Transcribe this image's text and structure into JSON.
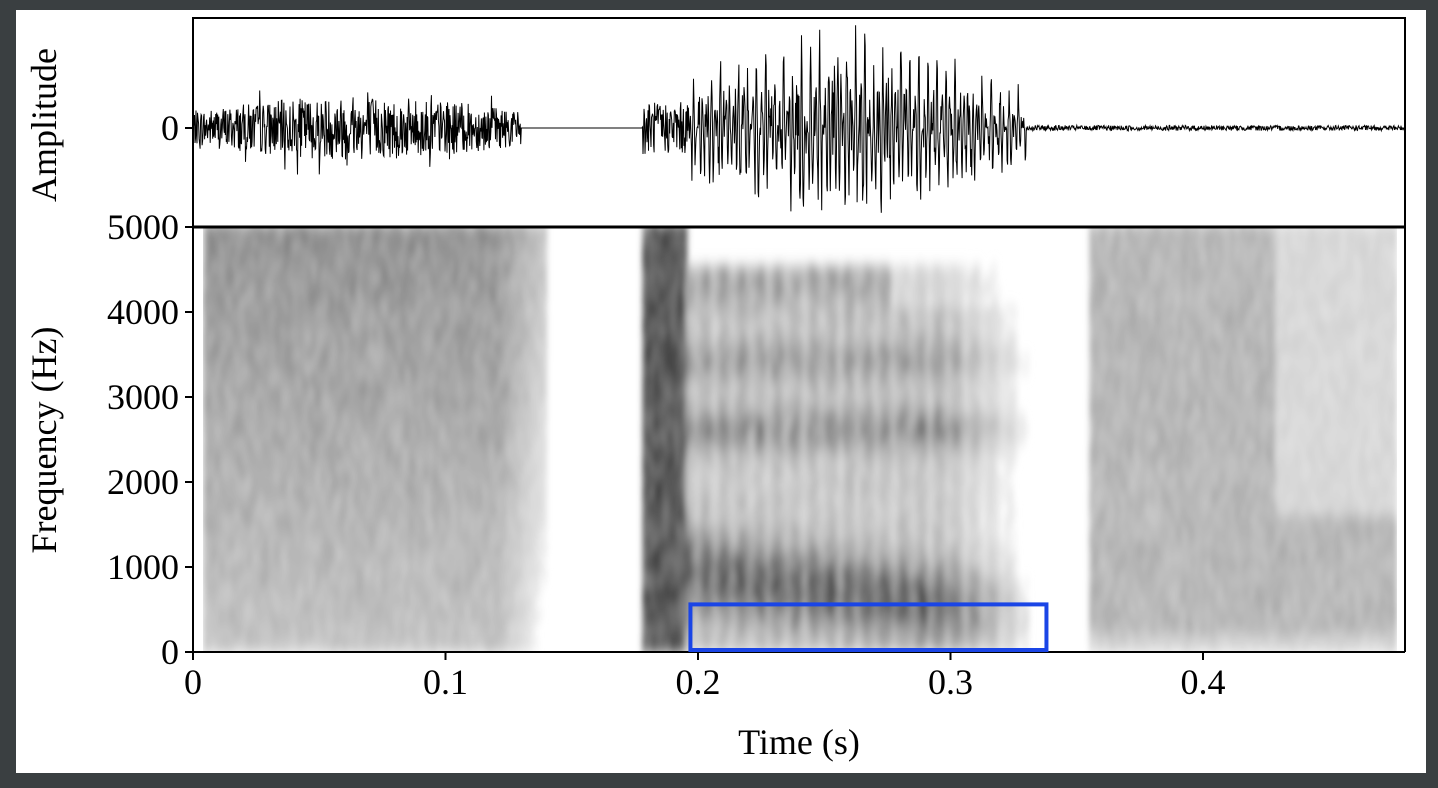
{
  "chart_data": [
    {
      "type": "line",
      "title": "",
      "xlabel": "",
      "ylabel": "Amplitude",
      "ylim": [
        -1,
        1
      ],
      "xlim": [
        0,
        0.48
      ],
      "y_ticks": [
        {
          "value": 0,
          "label": "0"
        }
      ],
      "grid": false,
      "segments": [
        {
          "x_start": 0.0,
          "x_end": 0.13,
          "kind": "frication",
          "peak_amplitude": 0.3
        },
        {
          "x_start": 0.13,
          "x_end": 0.178,
          "kind": "silence",
          "peak_amplitude": 0.0
        },
        {
          "x_start": 0.178,
          "x_end": 0.197,
          "kind": "burst",
          "peak_amplitude": 0.25
        },
        {
          "x_start": 0.197,
          "x_end": 0.33,
          "kind": "voiced",
          "peak_amplitude": 1.0
        },
        {
          "x_start": 0.33,
          "x_end": 0.48,
          "kind": "low-noise",
          "peak_amplitude": 0.05
        }
      ]
    },
    {
      "type": "heatmap",
      "title": "",
      "xlabel": "Time (s)",
      "ylabel": "Frequency (Hz)",
      "xlim": [
        0,
        0.48
      ],
      "ylim": [
        0,
        5000
      ],
      "x_ticks": [
        {
          "value": 0,
          "label": "0"
        },
        {
          "value": 0.1,
          "label": "0.1"
        },
        {
          "value": 0.2,
          "label": "0.2"
        },
        {
          "value": 0.3,
          "label": "0.3"
        },
        {
          "value": 0.4,
          "label": "0.4"
        }
      ],
      "y_ticks": [
        {
          "value": 0,
          "label": "0"
        },
        {
          "value": 1000,
          "label": "1000"
        },
        {
          "value": 2000,
          "label": "2000"
        },
        {
          "value": 3000,
          "label": "3000"
        },
        {
          "value": 4000,
          "label": "4000"
        },
        {
          "value": 5000,
          "label": "5000"
        }
      ],
      "grid": false,
      "colormap": "grayscale (darker = more energy)",
      "energy_regions": [
        {
          "t_start": 0.004,
          "t_end": 0.14,
          "f_low": 0,
          "f_high": 5000,
          "intensity": 0.45,
          "pattern": "broadband noise, darkest 3000-5000 Hz"
        },
        {
          "t_start": 0.178,
          "t_end": 0.195,
          "f_low": 0,
          "f_high": 5000,
          "intensity": 0.7,
          "pattern": "release burst"
        },
        {
          "t_start": 0.195,
          "t_end": 0.33,
          "f_low": 0,
          "f_high": 4500,
          "intensity": 0.75,
          "pattern": "voiced formant bands with vertical striations"
        },
        {
          "t_start": 0.355,
          "t_end": 0.475,
          "f_low": 0,
          "f_high": 5000,
          "intensity": 0.3,
          "pattern": "weak noise"
        }
      ],
      "highlight_box": {
        "t_start": 0.197,
        "t_end": 0.338,
        "f_low": 0,
        "f_high": 560,
        "color": "#1a45e6"
      }
    }
  ]
}
